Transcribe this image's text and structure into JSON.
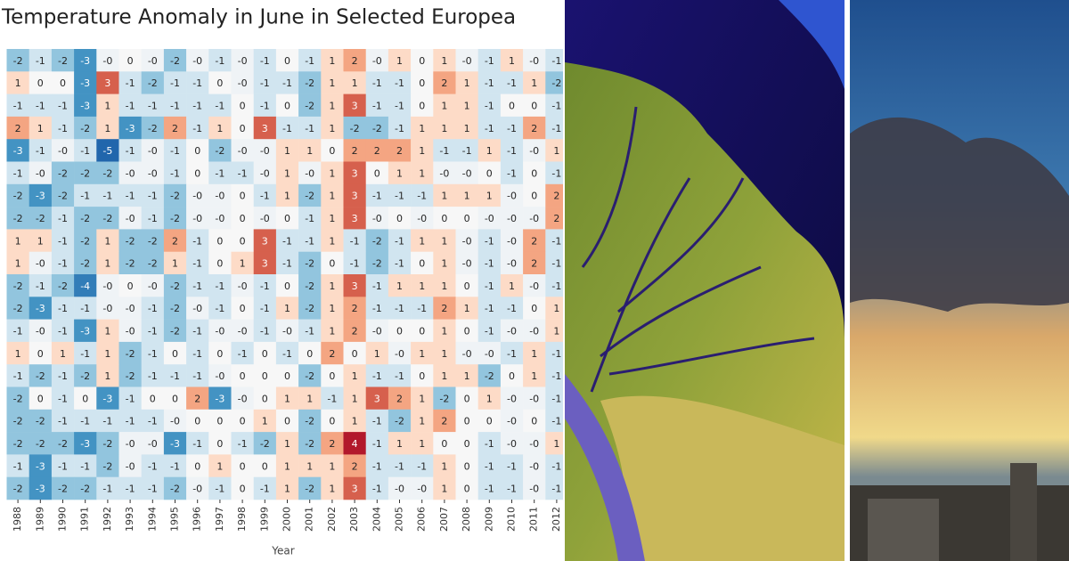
{
  "chart_data": {
    "type": "heatmap",
    "title": "Temperature Anomaly in June in Selected Europea",
    "x_label": "Year",
    "colormap": "RdBu_r",
    "zlim": [
      -5,
      5
    ],
    "categories": [
      1988,
      1989,
      1990,
      1991,
      1992,
      1993,
      1994,
      1995,
      1996,
      1997,
      1998,
      1999,
      2000,
      2001,
      2002,
      2003,
      2004,
      2005,
      2006,
      2007,
      2008,
      2009,
      2010,
      2011,
      2012
    ],
    "series": [
      {
        "values": [
          -2,
          -1,
          -2,
          -3,
          -0.2,
          0,
          -0.2,
          -2,
          -0.2,
          -1,
          -0.2,
          -1,
          0,
          -1,
          1,
          2,
          -0.2,
          1,
          0,
          1,
          -0.2,
          -1,
          1,
          -0.2,
          -1
        ],
        "value_labels": [
          "-2",
          "-1",
          "-2",
          "-3",
          "-0",
          "0",
          "-0",
          "-2",
          "-0",
          "-1",
          "-0",
          "-1",
          "0",
          "-1",
          "1",
          "2",
          "-0",
          "1",
          "0",
          "1",
          "-0",
          "-1",
          "1",
          "-0",
          "-1"
        ]
      },
      {
        "values": [
          1,
          0,
          0,
          -3,
          3,
          -1,
          -2,
          -1,
          -1,
          0,
          -0.2,
          -1,
          -1,
          -2,
          1,
          1,
          -1,
          -1,
          0,
          2,
          1,
          -1,
          -1,
          1,
          -2
        ],
        "value_labels": [
          "1",
          "0",
          "0",
          "-3",
          "3",
          "-1",
          "-2",
          "-1",
          "-1",
          "0",
          "-0",
          "-1",
          "-1",
          "-2",
          "1",
          "1",
          "-1",
          "-1",
          "0",
          "2",
          "1",
          "-1",
          "-1",
          "1",
          "-2"
        ]
      },
      {
        "values": [
          -1,
          -1,
          -1,
          -3,
          1,
          -1,
          -1,
          -1,
          -1,
          -1,
          0,
          -1,
          0,
          -2,
          1,
          3,
          -1,
          -1,
          0,
          1,
          1,
          -1,
          0,
          0,
          -1
        ],
        "value_labels": [
          "-1",
          "-1",
          "-1",
          "-3",
          "1",
          "-1",
          "-1",
          "-1",
          "-1",
          "-1",
          "0",
          "-1",
          "0",
          "-2",
          "1",
          "3",
          "-1",
          "-1",
          "0",
          "1",
          "1",
          "-1",
          "0",
          "0",
          "-1"
        ]
      },
      {
        "values": [
          2,
          1,
          -1,
          -2,
          1,
          -3,
          -2,
          2,
          -1,
          1,
          0,
          3,
          -1,
          -1,
          1,
          -2,
          -2,
          -1,
          1,
          1,
          1,
          -1,
          -1,
          2,
          -1
        ],
        "value_labels": [
          "2",
          "1",
          "-1",
          "-2",
          "1",
          "-3",
          "-2",
          "2",
          "-1",
          "1",
          "0",
          "3",
          "-1",
          "-1",
          "1",
          "-2",
          "-2",
          "-1",
          "1",
          "1",
          "1",
          "-1",
          "-1",
          "2",
          "-1"
        ]
      },
      {
        "values": [
          -3,
          -1,
          -0.2,
          -1,
          -5,
          -1,
          -0.2,
          -1,
          0,
          -2,
          -0.2,
          -0.2,
          1,
          1,
          0,
          2,
          2,
          2,
          1,
          -1,
          -1,
          1,
          -1,
          -0.2,
          1
        ],
        "value_labels": [
          "-3",
          "-1",
          "-0",
          "-1",
          "-5",
          "-1",
          "-0",
          "-1",
          "0",
          "-2",
          "-0",
          "-0",
          "1",
          "1",
          "0",
          "2",
          "2",
          "2",
          "1",
          "-1",
          "-1",
          "1",
          "-1",
          "-0",
          "1"
        ]
      },
      {
        "values": [
          -1,
          -0.2,
          -2,
          -2,
          -2,
          -0.2,
          -0.2,
          -1,
          0,
          -1,
          -1,
          -0.2,
          1,
          -0.2,
          1,
          3,
          0,
          1,
          1,
          -0.2,
          -0.2,
          0,
          -1,
          0,
          -1
        ],
        "value_labels": [
          "-1",
          "-0",
          "-2",
          "-2",
          "-2",
          "-0",
          "-0",
          "-1",
          "0",
          "-1",
          "-1",
          "-0",
          "1",
          "-0",
          "1",
          "3",
          "0",
          "1",
          "1",
          "-0",
          "-0",
          "0",
          "-1",
          "0",
          "-1"
        ]
      },
      {
        "values": [
          -2,
          -3,
          -2,
          -1,
          -1,
          -1,
          -1,
          -2,
          -0.2,
          -0.2,
          0,
          -1,
          1,
          -2,
          1,
          3,
          -1,
          -1,
          -1,
          1,
          1,
          1,
          -0.2,
          0,
          2
        ],
        "value_labels": [
          "-2",
          "-3",
          "-2",
          "-1",
          "-1",
          "-1",
          "-1",
          "-2",
          "-0",
          "-0",
          "0",
          "-1",
          "1",
          "-2",
          "1",
          "3",
          "-1",
          "-1",
          "-1",
          "1",
          "1",
          "1",
          "-0",
          "0",
          "2"
        ]
      },
      {
        "values": [
          -2,
          -2,
          -1,
          -2,
          -2,
          -0.2,
          -1,
          -2,
          -0.2,
          -0.2,
          0,
          -0.2,
          0,
          -1,
          1,
          3,
          -0.2,
          0,
          -0.2,
          0,
          0,
          -0.2,
          -0.2,
          -0.2,
          2
        ],
        "value_labels": [
          "-2",
          "-2",
          "-1",
          "-2",
          "-2",
          "-0",
          "-1",
          "-2",
          "-0",
          "-0",
          "0",
          "-0",
          "0",
          "-1",
          "1",
          "3",
          "-0",
          "0",
          "-0",
          "0",
          "0",
          "-0",
          "-0",
          "-0",
          "2"
        ]
      },
      {
        "values": [
          1,
          1,
          -1,
          -2,
          1,
          -2,
          -2,
          2,
          -1,
          0,
          0,
          3,
          -1,
          -1,
          1,
          -1,
          -2,
          -1,
          1,
          1,
          -0.2,
          -1,
          -0.2,
          2,
          -1
        ],
        "value_labels": [
          "1",
          "1",
          "-1",
          "-2",
          "1",
          "-2",
          "-2",
          "2",
          "-1",
          "0",
          "0",
          "3",
          "-1",
          "-1",
          "1",
          "-1",
          "-2",
          "-1",
          "1",
          "1",
          "-0",
          "-1",
          "-0",
          "2",
          "-1"
        ]
      },
      {
        "values": [
          1,
          -0.2,
          -1,
          -2,
          1,
          -2,
          -2,
          1,
          -1,
          0,
          1,
          3,
          -1,
          -2,
          0,
          -1,
          -2,
          -1,
          0,
          1,
          -0.2,
          -1,
          -0.2,
          2,
          -1
        ],
        "value_labels": [
          "1",
          "-0",
          "-1",
          "-2",
          "1",
          "-2",
          "-2",
          "1",
          "-1",
          "0",
          "1",
          "3",
          "-1",
          "-2",
          "0",
          "-1",
          "-2",
          "-1",
          "0",
          "1",
          "-0",
          "-1",
          "-0",
          "2",
          "-1"
        ]
      },
      {
        "values": [
          -2,
          -1,
          -2,
          -4,
          -0.2,
          0,
          -0.2,
          -2,
          -1,
          -1,
          -0.2,
          -1,
          0,
          -2,
          1,
          3,
          -1,
          1,
          1,
          1,
          0,
          -1,
          1,
          -0.2,
          -1
        ],
        "value_labels": [
          "-2",
          "-1",
          "-2",
          "-4",
          "-0",
          "0",
          "-0",
          "-2",
          "-1",
          "-1",
          "-0",
          "-1",
          "0",
          "-2",
          "1",
          "3",
          "-1",
          "1",
          "1",
          "1",
          "0",
          "-1",
          "1",
          "-0",
          "-1"
        ]
      },
      {
        "values": [
          -2,
          -3,
          -1,
          -1,
          -0.2,
          -0.2,
          -1,
          -2,
          -0.2,
          -1,
          0,
          -1,
          1,
          -2,
          1,
          2,
          -1,
          -1,
          -1,
          2,
          1,
          -1,
          -1,
          0,
          1
        ],
        "value_labels": [
          "-2",
          "-3",
          "-1",
          "-1",
          "-0",
          "-0",
          "-1",
          "-2",
          "-0",
          "-1",
          "0",
          "-1",
          "1",
          "-2",
          "1",
          "2",
          "-1",
          "-1",
          "-1",
          "2",
          "1",
          "-1",
          "-1",
          "0",
          "1"
        ]
      },
      {
        "values": [
          -1,
          -0.2,
          -1,
          -3,
          1,
          -0.2,
          -1,
          -2,
          -1,
          -0.2,
          -0.2,
          -1,
          -0.2,
          -1,
          1,
          2,
          -0.2,
          0,
          0,
          1,
          0,
          -1,
          -0.2,
          -0.2,
          1
        ],
        "value_labels": [
          "-1",
          "-0",
          "-1",
          "-3",
          "1",
          "-0",
          "-1",
          "-2",
          "-1",
          "-0",
          "-0",
          "-1",
          "-0",
          "-1",
          "1",
          "2",
          "-0",
          "0",
          "0",
          "1",
          "0",
          "-1",
          "-0",
          "-0",
          "1"
        ]
      },
      {
        "values": [
          1,
          0,
          1,
          -1,
          1,
          -2,
          -1,
          0,
          -1,
          0,
          -1,
          0,
          -1,
          0,
          2,
          0,
          1,
          -0.2,
          1,
          1,
          -0.2,
          -0.2,
          -1,
          1,
          -1
        ],
        "value_labels": [
          "1",
          "0",
          "1",
          "-1",
          "1",
          "-2",
          "-1",
          "0",
          "-1",
          "0",
          "-1",
          "0",
          "-1",
          "0",
          "2",
          "0",
          "1",
          "-0",
          "1",
          "1",
          "-0",
          "-0",
          "-1",
          "1",
          "-1"
        ]
      },
      {
        "values": [
          -1,
          -2,
          -1,
          -2,
          1,
          -2,
          -1,
          -1,
          -1,
          -0.2,
          0,
          0,
          0,
          -2,
          0,
          1,
          -1,
          -1,
          0,
          1,
          1,
          -2,
          0,
          1,
          -1
        ],
        "value_labels": [
          "-1",
          "-2",
          "-1",
          "-2",
          "1",
          "-2",
          "-1",
          "-1",
          "-1",
          "-0",
          "0",
          "0",
          "0",
          "-2",
          "0",
          "1",
          "-1",
          "-1",
          "0",
          "1",
          "1",
          "-2",
          "0",
          "1",
          "-1"
        ]
      },
      {
        "values": [
          -2,
          0,
          -1,
          0,
          -3,
          -1,
          0,
          0,
          2,
          -3,
          -0.2,
          0,
          1,
          1,
          -1,
          1,
          3,
          2,
          1,
          -2,
          0,
          1,
          -0.2,
          -0.2,
          -1
        ],
        "value_labels": [
          "-2",
          "0",
          "-1",
          "0",
          "-3",
          "-1",
          "0",
          "0",
          "2",
          "-3",
          "-0",
          "0",
          "1",
          "1",
          "-1",
          "1",
          "3",
          "2",
          "1",
          "-2",
          "0",
          "1",
          "-0",
          "-0",
          "-1"
        ]
      },
      {
        "values": [
          -2,
          -2,
          -1,
          -1,
          -1,
          -1,
          -1,
          -0.2,
          0,
          0,
          0,
          1,
          0,
          -2,
          0,
          1,
          -1,
          -2,
          1,
          2,
          0,
          0,
          -0.2,
          0,
          -1
        ],
        "value_labels": [
          "-2",
          "-2",
          "-1",
          "-1",
          "-1",
          "-1",
          "-1",
          "-0",
          "0",
          "0",
          "0",
          "1",
          "0",
          "-2",
          "0",
          "1",
          "-1",
          "-2",
          "1",
          "2",
          "0",
          "0",
          "-0",
          "0",
          "-1"
        ]
      },
      {
        "values": [
          -2,
          -2,
          -2,
          -3,
          -2,
          -0.2,
          -0.2,
          -3,
          -1,
          0,
          -1,
          -2,
          1,
          -2,
          2,
          4,
          -1,
          1,
          1,
          0,
          0,
          -1,
          -0.2,
          -0.2,
          1
        ],
        "value_labels": [
          "-2",
          "-2",
          "-2",
          "-3",
          "-2",
          "-0",
          "-0",
          "-3",
          "-1",
          "0",
          "-1",
          "-2",
          "1",
          "-2",
          "2",
          "4",
          "-1",
          "1",
          "1",
          "0",
          "0",
          "-1",
          "-0",
          "-0",
          "1"
        ]
      },
      {
        "values": [
          -1,
          -3,
          -1,
          -1,
          -2,
          -0.2,
          -1,
          -1,
          0,
          1,
          0,
          0,
          1,
          1,
          1,
          2,
          -1,
          -1,
          -1,
          1,
          0,
          -1,
          -1,
          -0.2,
          -1
        ],
        "value_labels": [
          "-1",
          "-3",
          "-1",
          "-1",
          "-2",
          "-0",
          "-1",
          "-1",
          "0",
          "1",
          "0",
          "0",
          "1",
          "1",
          "1",
          "2",
          "-1",
          "-1",
          "-1",
          "1",
          "0",
          "-1",
          "-1",
          "-0",
          "-1"
        ]
      },
      {
        "values": [
          -2,
          -3,
          -2,
          -2,
          -1,
          -1,
          -1,
          -2,
          -0.2,
          -1,
          0,
          -1,
          1,
          -2,
          1,
          3,
          -1,
          -0.2,
          -0.2,
          1,
          0,
          -1,
          -1,
          -0.2,
          -1
        ],
        "value_labels": [
          "-2",
          "-3",
          "-2",
          "-2",
          "-1",
          "-1",
          "-1",
          "-2",
          "-0",
          "-1",
          "0",
          "-1",
          "1",
          "-2",
          "1",
          "3",
          "-1",
          "-0",
          "-0",
          "1",
          "0",
          "-1",
          "-1",
          "-0",
          "-1"
        ]
      }
    ]
  }
}
